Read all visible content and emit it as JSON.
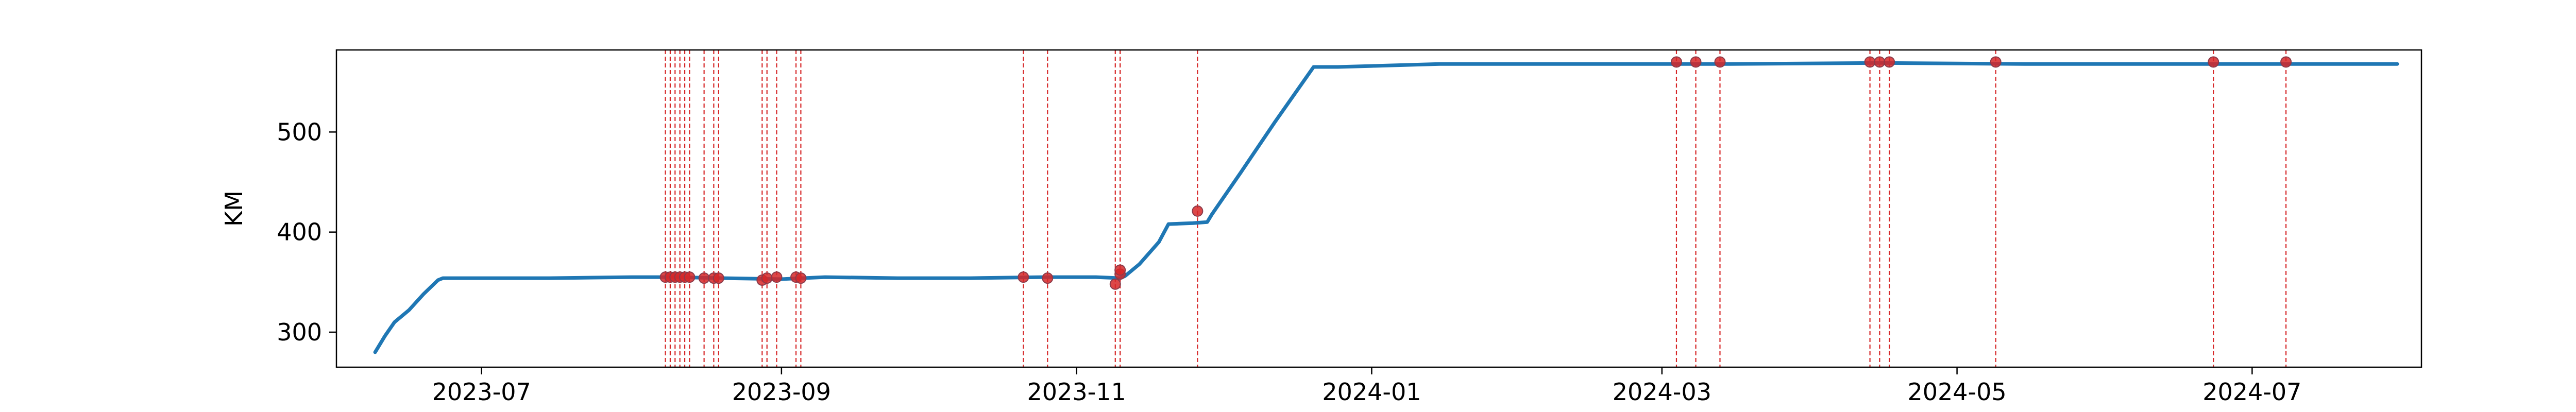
{
  "chart_data": {
    "type": "line",
    "title": "",
    "xlabel": "",
    "ylabel": "KM",
    "x_axis": "date",
    "xlim": [
      "2023-06-01",
      "2024-08-05"
    ],
    "ylim": [
      265,
      582
    ],
    "xticks": [
      {
        "date": "2023-07-01",
        "label": "2023-07"
      },
      {
        "date": "2023-09-01",
        "label": "2023-09"
      },
      {
        "date": "2023-11-01",
        "label": "2023-11"
      },
      {
        "date": "2024-01-01",
        "label": "2024-01"
      },
      {
        "date": "2024-03-01",
        "label": "2024-03"
      },
      {
        "date": "2024-05-01",
        "label": "2024-05"
      },
      {
        "date": "2024-07-01",
        "label": "2024-07"
      }
    ],
    "yticks": [
      300,
      400,
      500
    ],
    "grid": false,
    "colors": {
      "line": "#1f77b4",
      "events": "#d62728"
    },
    "series": [
      {
        "points": [
          [
            "2023-06-09",
            280
          ],
          [
            "2023-06-11",
            296
          ],
          [
            "2023-06-13",
            310
          ],
          [
            "2023-06-16",
            322
          ],
          [
            "2023-06-19",
            338
          ],
          [
            "2023-06-22",
            352
          ],
          [
            "2023-06-23",
            354
          ],
          [
            "2023-07-15",
            354
          ],
          [
            "2023-08-01",
            355
          ],
          [
            "2023-08-10",
            355
          ],
          [
            "2023-08-20",
            354
          ],
          [
            "2023-09-01",
            353
          ],
          [
            "2023-09-10",
            355
          ],
          [
            "2023-09-25",
            354
          ],
          [
            "2023-10-10",
            354
          ],
          [
            "2023-10-25",
            355
          ],
          [
            "2023-11-05",
            355
          ],
          [
            "2023-11-10",
            354
          ],
          [
            "2023-11-11",
            356
          ],
          [
            "2023-11-14",
            368
          ],
          [
            "2023-11-18",
            390
          ],
          [
            "2023-11-20",
            408
          ],
          [
            "2023-11-25",
            409
          ],
          [
            "2023-11-28",
            410
          ],
          [
            "2023-11-29",
            418
          ],
          [
            "2023-12-05",
            460
          ],
          [
            "2023-12-12",
            510
          ],
          [
            "2023-12-20",
            565
          ],
          [
            "2023-12-25",
            565
          ],
          [
            "2024-01-01",
            566
          ],
          [
            "2024-01-15",
            568
          ],
          [
            "2024-02-15",
            568
          ],
          [
            "2024-03-15",
            568
          ],
          [
            "2024-04-15",
            569
          ],
          [
            "2024-05-15",
            568
          ],
          [
            "2024-06-15",
            568
          ],
          [
            "2024-07-15",
            568
          ],
          [
            "2024-07-31",
            568
          ]
        ]
      }
    ],
    "events": [
      {
        "date": "2023-08-08",
        "value": 355
      },
      {
        "date": "2023-08-09",
        "value": 355
      },
      {
        "date": "2023-08-10",
        "value": 355
      },
      {
        "date": "2023-08-11",
        "value": 355
      },
      {
        "date": "2023-08-12",
        "value": 355
      },
      {
        "date": "2023-08-13",
        "value": 355
      },
      {
        "date": "2023-08-16",
        "value": 354
      },
      {
        "date": "2023-08-18",
        "value": 354
      },
      {
        "date": "2023-08-19",
        "value": 354
      },
      {
        "date": "2023-08-28",
        "value": 352
      },
      {
        "date": "2023-08-29",
        "value": 354
      },
      {
        "date": "2023-08-31",
        "value": 355
      },
      {
        "date": "2023-09-04",
        "value": 355
      },
      {
        "date": "2023-09-05",
        "value": 354
      },
      {
        "date": "2023-10-21",
        "value": 355
      },
      {
        "date": "2023-10-26",
        "value": 354
      },
      {
        "date": "2023-11-09",
        "value": 348
      },
      {
        "date": "2023-11-10",
        "value": 358
      },
      {
        "date": "2023-11-10",
        "value": 362
      },
      {
        "date": "2023-11-26",
        "value": 421
      },
      {
        "date": "2024-03-04",
        "value": 570
      },
      {
        "date": "2024-03-08",
        "value": 570
      },
      {
        "date": "2024-03-13",
        "value": 570
      },
      {
        "date": "2024-04-13",
        "value": 570
      },
      {
        "date": "2024-04-15",
        "value": 570
      },
      {
        "date": "2024-04-17",
        "value": 570
      },
      {
        "date": "2024-05-09",
        "value": 570
      },
      {
        "date": "2024-06-23",
        "value": 570
      },
      {
        "date": "2024-07-08",
        "value": 570
      }
    ]
  }
}
